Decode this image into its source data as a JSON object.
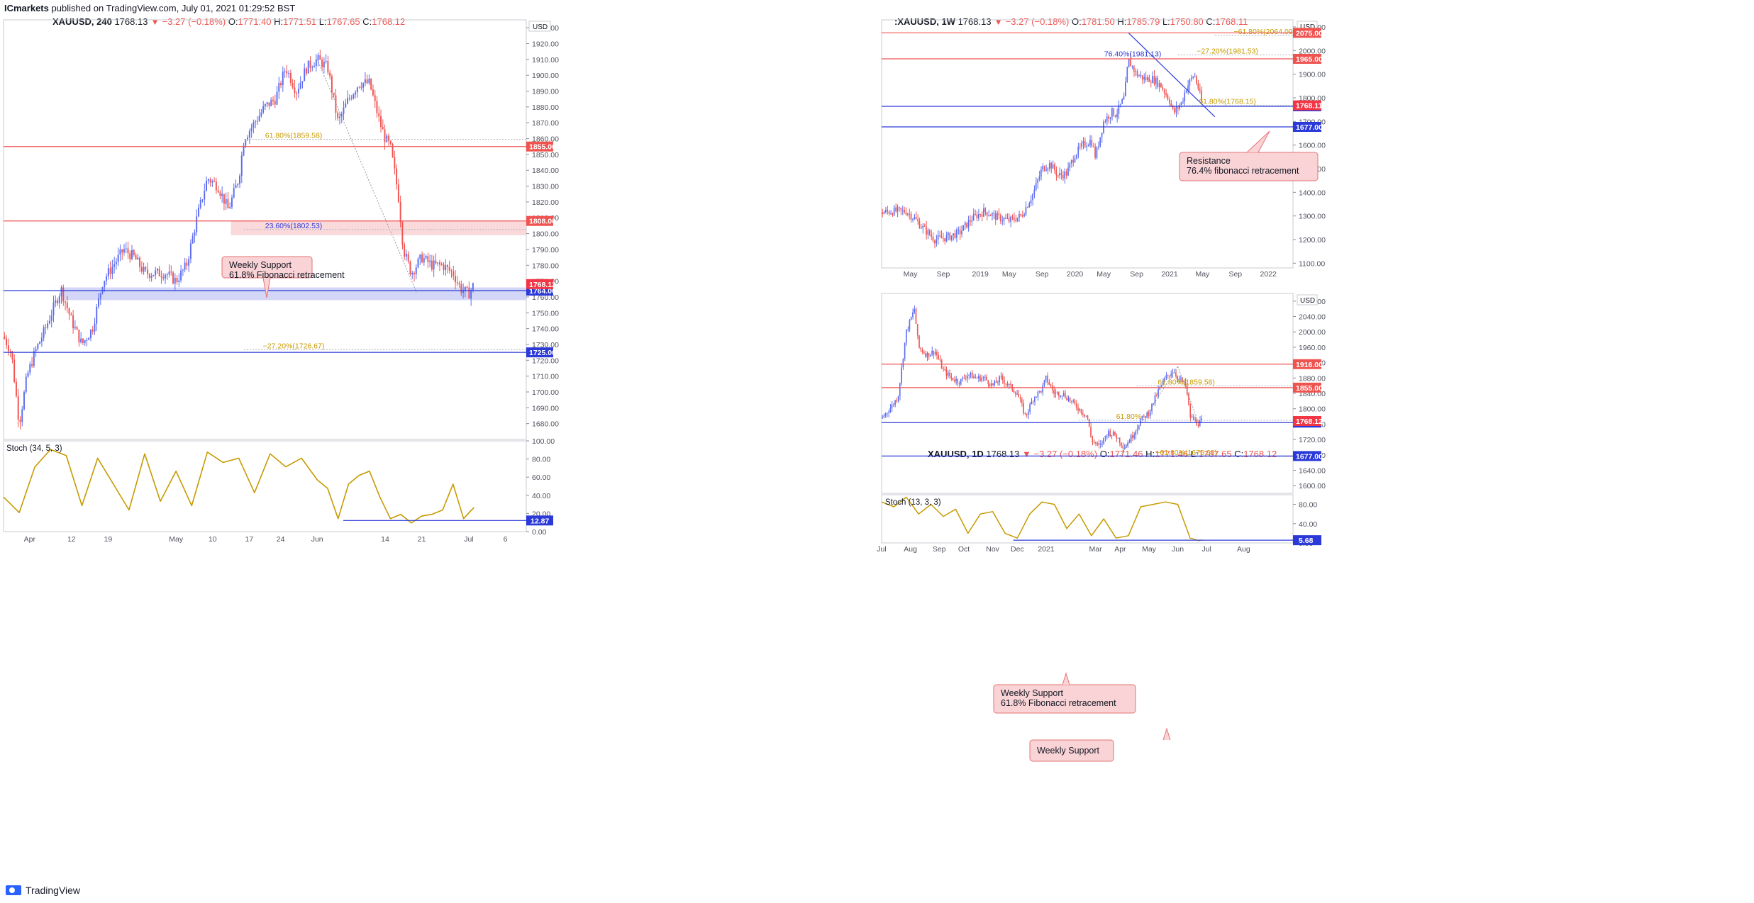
{
  "publisher": {
    "name": "ICmarkets",
    "text": "published on TradingView.com, July 01, 2021 01:29:52 BST"
  },
  "brand": "TradingView",
  "colors": {
    "up": "#5b6cf0",
    "down": "#ef5350",
    "red_line": "#ef5350",
    "blue_line": "#2a39d8",
    "stoch": "#c79a00",
    "fib": "#c79a00",
    "zone_red": "#f8c9cc",
    "zone_blue": "#c8ccf4",
    "callout_bg": "#f9d3d6",
    "callout_border": "#e57373"
  },
  "panels": {
    "left": {
      "header": {
        "symbol": "XAUUSD, 240",
        "price": "1768.13",
        "change": "−3.27 (−0.18%)",
        "o": "1771.40",
        "h": "1771.51",
        "l": "1767.65",
        "c": "1768.12"
      },
      "currency": "USD",
      "callouts": [
        {
          "text1": "Weekly Support",
          "text2": "61.8% Fibonacci retracement"
        }
      ],
      "fib_labels": [
        "61.80%(1859.58)",
        "23.60%(1802.53)",
        "−27.20%(1726.67)"
      ],
      "stoch": {
        "title": "Stoch (34, 5, 3)",
        "value": "12.87",
        "ticks": [
          "100.00",
          "80.00",
          "60.00",
          "40.00",
          "20.00",
          "0.00"
        ]
      }
    },
    "right_top": {
      "header": {
        "symbol": ":XAUUSD, 1W",
        "price": "1768.13",
        "change": "−3.27 (−0.18%)",
        "o": "1781.50",
        "h": "1785.79",
        "l": "1750.80",
        "c": "1768.11"
      },
      "currency": "USD",
      "callouts": [
        {
          "text1": "Resistance",
          "text2": "76.4% fibonacci retracement"
        }
      ],
      "fib_labels": [
        "−61.80%(2064.09)",
        "76.40%(1981.13)",
        "−27.20%(1981.53)",
        "61.80%(1768.15)"
      ]
    },
    "right_bottom": {
      "header": {
        "symbol": "XAUUSD, 1D",
        "price": "1768.13",
        "change": "−3.27 (−0.18%)",
        "o": "1771.46",
        "h": "1771.46",
        "l": "1767.65",
        "c": "1768.12"
      },
      "currency": "USD",
      "callouts": [
        {
          "text1": "Weekly Support",
          "text2": "61.8% Fibonacci retracement"
        },
        {
          "text1": "Weekly Support",
          "text2": ""
        }
      ],
      "fib_labels": [
        "61.80%(1859.58)",
        "61.80%",
        "−61.80%(1675.68)"
      ],
      "stoch": {
        "title": "Stoch (13, 3, 3)",
        "value": "5.68",
        "ticks": [
          "80.00",
          "40.00",
          "0.00"
        ]
      }
    }
  },
  "chart_data": [
    {
      "type": "candlestick",
      "title": "XAUUSD, 240",
      "ylim": [
        1670,
        1935
      ],
      "y_ticks": [
        1680,
        1690,
        1700,
        1710,
        1720,
        1730,
        1740,
        1750,
        1760,
        1770,
        1780,
        1790,
        1800,
        1810,
        1820,
        1830,
        1840,
        1850,
        1860,
        1870,
        1880,
        1890,
        1900,
        1910,
        1920,
        1930
      ],
      "x_ticks": [
        "Apr",
        "12",
        "19",
        "May",
        "10",
        "17",
        "24",
        "Jun",
        "14",
        "21",
        "Jul",
        "6"
      ],
      "x_tick_pos": [
        0.05,
        0.13,
        0.2,
        0.33,
        0.4,
        0.47,
        0.53,
        0.6,
        0.73,
        0.8,
        0.89,
        0.96
      ],
      "path_points": [
        [
          0,
          1735
        ],
        [
          0.015,
          1725
        ],
        [
          0.03,
          1680
        ],
        [
          0.045,
          1710
        ],
        [
          0.06,
          1725
        ],
        [
          0.08,
          1740
        ],
        [
          0.11,
          1765
        ],
        [
          0.13,
          1745
        ],
        [
          0.15,
          1730
        ],
        [
          0.17,
          1740
        ],
        [
          0.19,
          1770
        ],
        [
          0.21,
          1780
        ],
        [
          0.23,
          1790
        ],
        [
          0.25,
          1785
        ],
        [
          0.27,
          1775
        ],
        [
          0.29,
          1775
        ],
        [
          0.31,
          1775
        ],
        [
          0.33,
          1770
        ],
        [
          0.35,
          1780
        ],
        [
          0.37,
          1810
        ],
        [
          0.39,
          1835
        ],
        [
          0.41,
          1830
        ],
        [
          0.43,
          1815
        ],
        [
          0.45,
          1835
        ],
        [
          0.46,
          1860
        ],
        [
          0.48,
          1870
        ],
        [
          0.5,
          1880
        ],
        [
          0.52,
          1885
        ],
        [
          0.54,
          1905
        ],
        [
          0.56,
          1890
        ],
        [
          0.58,
          1905
        ],
        [
          0.6,
          1910
        ],
        [
          0.62,
          1905
        ],
        [
          0.64,
          1870
        ],
        [
          0.66,
          1885
        ],
        [
          0.68,
          1895
        ],
        [
          0.7,
          1895
        ],
        [
          0.72,
          1870
        ],
        [
          0.73,
          1860
        ],
        [
          0.74,
          1855
        ],
        [
          0.755,
          1825
        ],
        [
          0.765,
          1790
        ],
        [
          0.78,
          1775
        ],
        [
          0.8,
          1785
        ],
        [
          0.82,
          1780
        ],
        [
          0.84,
          1780
        ],
        [
          0.86,
          1775
        ],
        [
          0.875,
          1765
        ],
        [
          0.89,
          1762
        ],
        [
          0.9,
          1768
        ]
      ],
      "levels": [
        {
          "value": 1855,
          "label": "1855.00",
          "color": "red"
        },
        {
          "value": 1808,
          "label": "1808.00",
          "color": "red"
        },
        {
          "value": 1764,
          "label": "1764.00",
          "color": "blue"
        },
        {
          "value": 1725,
          "label": "1725.00",
          "color": "blue"
        }
      ],
      "price_label": {
        "value": 1768.12,
        "label": "1768.12"
      }
    },
    {
      "type": "line",
      "title": "Stoch (34, 5, 3)",
      "ylim": [
        0,
        100
      ],
      "x": [
        0,
        0.03,
        0.06,
        0.09,
        0.12,
        0.15,
        0.18,
        0.21,
        0.24,
        0.27,
        0.3,
        0.33,
        0.36,
        0.39,
        0.42,
        0.45,
        0.48,
        0.51,
        0.54,
        0.57,
        0.6,
        0.62,
        0.64,
        0.66,
        0.68,
        0.7,
        0.72,
        0.74,
        0.76,
        0.78,
        0.8,
        0.82,
        0.84,
        0.86,
        0.88,
        0.9
      ],
      "values": [
        40,
        22,
        75,
        95,
        88,
        30,
        85,
        55,
        25,
        90,
        35,
        70,
        30,
        92,
        80,
        85,
        45,
        90,
        75,
        85,
        60,
        50,
        15,
        55,
        65,
        70,
        40,
        15,
        20,
        10,
        18,
        20,
        25,
        55,
        15,
        28
      ],
      "level": {
        "value": 12.87,
        "label": "12.87"
      }
    },
    {
      "type": "candlestick",
      "title": ":XAUUSD, 1W",
      "ylim": [
        1080,
        2130
      ],
      "y_ticks": [
        1100,
        1200,
        1300,
        1400,
        1500,
        1600,
        1700,
        1800,
        1900,
        2000,
        2100
      ],
      "x_ticks": [
        "May",
        "Sep",
        "2019",
        "May",
        "Sep",
        "2020",
        "May",
        "Sep",
        "2021",
        "May",
        "Sep",
        "2022"
      ],
      "x_tick_pos": [
        0.07,
        0.15,
        0.24,
        0.31,
        0.39,
        0.47,
        0.54,
        0.62,
        0.7,
        0.78,
        0.86,
        0.94
      ],
      "path_points": [
        [
          0,
          1315
        ],
        [
          0.03,
          1320
        ],
        [
          0.06,
          1320
        ],
        [
          0.08,
          1290
        ],
        [
          0.1,
          1250
        ],
        [
          0.13,
          1200
        ],
        [
          0.16,
          1210
        ],
        [
          0.19,
          1230
        ],
        [
          0.22,
          1290
        ],
        [
          0.25,
          1320
        ],
        [
          0.28,
          1295
        ],
        [
          0.31,
          1280
        ],
        [
          0.34,
          1300
        ],
        [
          0.37,
          1400
        ],
        [
          0.39,
          1500
        ],
        [
          0.41,
          1520
        ],
        [
          0.43,
          1470
        ],
        [
          0.45,
          1480
        ],
        [
          0.47,
          1560
        ],
        [
          0.49,
          1600
        ],
        [
          0.51,
          1620
        ],
        [
          0.52,
          1550
        ],
        [
          0.54,
          1700
        ],
        [
          0.56,
          1740
        ],
        [
          0.57,
          1730
        ],
        [
          0.59,
          1800
        ],
        [
          0.6,
          1960
        ],
        [
          0.62,
          1900
        ],
        [
          0.64,
          1880
        ],
        [
          0.66,
          1880
        ],
        [
          0.68,
          1850
        ],
        [
          0.7,
          1790
        ],
        [
          0.71,
          1735
        ],
        [
          0.73,
          1780
        ],
        [
          0.74,
          1840
        ],
        [
          0.76,
          1900
        ],
        [
          0.77,
          1840
        ],
        [
          0.78,
          1768
        ]
      ],
      "levels": [
        {
          "value": 2075,
          "label": "2075.00",
          "color": "red"
        },
        {
          "value": 1965,
          "label": "1965.00",
          "color": "red"
        },
        {
          "value": 1764,
          "label": "1764.00",
          "color": "blue"
        },
        {
          "value": 1677,
          "label": "1677.00",
          "color": "blue"
        }
      ],
      "price_label": {
        "value": 1768.11,
        "label": "1768.11"
      }
    },
    {
      "type": "candlestick",
      "title": "XAUUSD, 1D",
      "ylim": [
        1580,
        2100
      ],
      "y_ticks": [
        1600,
        1640,
        1680,
        1720,
        1760,
        1800,
        1840,
        1880,
        1920,
        1960,
        2000,
        2040,
        2080
      ],
      "x_ticks": [
        "Jul",
        "Aug",
        "Sep",
        "Oct",
        "Nov",
        "Dec",
        "2021",
        "Mar",
        "Apr",
        "May",
        "Jun",
        "Jul",
        "Aug"
      ],
      "x_tick_pos": [
        0.0,
        0.07,
        0.14,
        0.2,
        0.27,
        0.33,
        0.4,
        0.52,
        0.58,
        0.65,
        0.72,
        0.79,
        0.88
      ],
      "path_points": [
        [
          0,
          1775
        ],
        [
          0.02,
          1800
        ],
        [
          0.04,
          1830
        ],
        [
          0.06,
          2000
        ],
        [
          0.08,
          2060
        ],
        [
          0.09,
          1960
        ],
        [
          0.11,
          1940
        ],
        [
          0.13,
          1950
        ],
        [
          0.15,
          1900
        ],
        [
          0.17,
          1880
        ],
        [
          0.19,
          1870
        ],
        [
          0.21,
          1890
        ],
        [
          0.23,
          1880
        ],
        [
          0.25,
          1880
        ],
        [
          0.27,
          1860
        ],
        [
          0.29,
          1880
        ],
        [
          0.31,
          1860
        ],
        [
          0.33,
          1840
        ],
        [
          0.35,
          1780
        ],
        [
          0.37,
          1830
        ],
        [
          0.39,
          1850
        ],
        [
          0.4,
          1880
        ],
        [
          0.42,
          1840
        ],
        [
          0.44,
          1840
        ],
        [
          0.46,
          1820
        ],
        [
          0.48,
          1800
        ],
        [
          0.5,
          1780
        ],
        [
          0.51,
          1720
        ],
        [
          0.53,
          1700
        ],
        [
          0.55,
          1740
        ],
        [
          0.57,
          1730
        ],
        [
          0.59,
          1700
        ],
        [
          0.61,
          1730
        ],
        [
          0.63,
          1770
        ],
        [
          0.65,
          1790
        ],
        [
          0.67,
          1840
        ],
        [
          0.69,
          1880
        ],
        [
          0.71,
          1900
        ],
        [
          0.72,
          1880
        ],
        [
          0.74,
          1860
        ],
        [
          0.75,
          1780
        ],
        [
          0.76,
          1770
        ],
        [
          0.77,
          1762
        ],
        [
          0.78,
          1768
        ]
      ],
      "levels": [
        {
          "value": 1916,
          "label": "1916.00",
          "color": "red"
        },
        {
          "value": 1855,
          "label": "1855.00",
          "color": "red"
        },
        {
          "value": 1764,
          "label": "1764.00",
          "color": "blue"
        },
        {
          "value": 1677,
          "label": "1677.00",
          "color": "blue"
        }
      ],
      "price_label": {
        "value": 1768.12,
        "label": "1768.12"
      }
    },
    {
      "type": "line",
      "title": "Stoch (13, 3, 3)",
      "ylim": [
        0,
        100
      ],
      "x": [
        0,
        0.03,
        0.06,
        0.09,
        0.12,
        0.15,
        0.18,
        0.21,
        0.24,
        0.27,
        0.3,
        0.33,
        0.36,
        0.39,
        0.42,
        0.45,
        0.48,
        0.51,
        0.54,
        0.57,
        0.6,
        0.63,
        0.66,
        0.69,
        0.72,
        0.75,
        0.77,
        0.78
      ],
      "values": [
        85,
        75,
        95,
        60,
        80,
        55,
        70,
        20,
        60,
        65,
        20,
        10,
        60,
        85,
        80,
        30,
        60,
        15,
        50,
        10,
        15,
        75,
        80,
        85,
        80,
        10,
        5,
        6
      ],
      "level": {
        "value": 5.68,
        "label": "5.68"
      }
    }
  ]
}
